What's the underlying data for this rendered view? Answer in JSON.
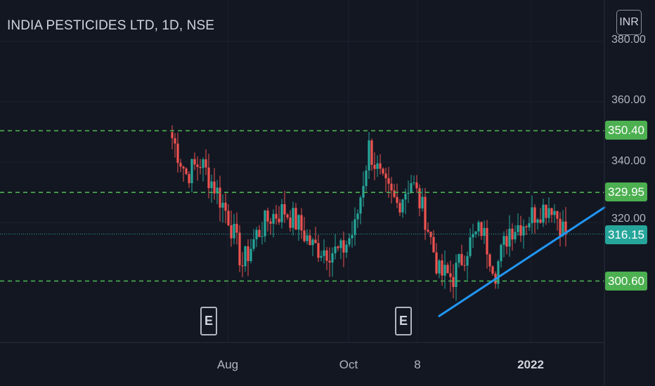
{
  "header": {
    "title": "INDIA PESTICIDES LTD, 1D, NSE",
    "currency": "INR"
  },
  "y_axis": {
    "ticks": [
      "380.00",
      "360.00",
      "340.00",
      "320.00"
    ]
  },
  "x_axis": {
    "ticks": [
      {
        "label": "Aug",
        "bold": false
      },
      {
        "label": "Oct",
        "bold": false
      },
      {
        "label": "8",
        "bold": false
      },
      {
        "label": "2022",
        "bold": true
      }
    ]
  },
  "price_levels": [
    {
      "value": 350.4,
      "label": "350.40",
      "color": "#4caf50"
    },
    {
      "value": 329.95,
      "label": "329.95",
      "color": "#4caf50"
    },
    {
      "value": 300.6,
      "label": "300.60",
      "color": "#4caf50"
    }
  ],
  "last_price": {
    "value": 316.15,
    "label": "316.15",
    "color": "#26a69a"
  },
  "earnings_markers": [
    {
      "label": "E"
    },
    {
      "label": "E"
    }
  ],
  "colors": {
    "up": "#26a69a",
    "down": "#ef5350",
    "level_line": "#4caf50",
    "trend_line": "#2196f3",
    "grid": "#1e222d"
  },
  "chart_data": {
    "type": "candlestick",
    "title": "INDIA PESTICIDES LTD, 1D, NSE",
    "currency": "INR",
    "ylim": [
      270,
      380
    ],
    "y_ticks": [
      320,
      340,
      360,
      380
    ],
    "x_ticks": [
      "Aug",
      "Oct",
      "8",
      "2022"
    ],
    "support_resistance_levels": [
      350.4,
      329.95,
      300.6
    ],
    "last_price": 316.15,
    "trend_line": {
      "from": {
        "date": "2021-11-15",
        "value": 289
      },
      "to": {
        "date": "2022-01-18",
        "value": 317
      }
    },
    "earnings_events": [
      "2021-08-13",
      "2021-11-08"
    ],
    "ohlc_anchor_points": [
      {
        "date": "2021-07-05",
        "close": 348
      },
      {
        "date": "2021-07-12",
        "close": 336
      },
      {
        "date": "2021-07-19",
        "close": 340
      },
      {
        "date": "2021-07-26",
        "close": 332
      },
      {
        "date": "2021-08-02",
        "close": 322
      },
      {
        "date": "2021-08-09",
        "close": 306
      },
      {
        "date": "2021-08-16",
        "close": 316
      },
      {
        "date": "2021-08-23",
        "close": 322
      },
      {
        "date": "2021-08-30",
        "close": 324
      },
      {
        "date": "2021-09-06",
        "close": 319
      },
      {
        "date": "2021-09-13",
        "close": 312
      },
      {
        "date": "2021-09-20",
        "close": 311
      },
      {
        "date": "2021-09-27",
        "close": 310
      },
      {
        "date": "2021-10-04",
        "close": 318
      },
      {
        "date": "2021-10-11",
        "close": 345
      },
      {
        "date": "2021-10-18",
        "close": 332
      },
      {
        "date": "2021-10-25",
        "close": 326
      },
      {
        "date": "2021-11-01",
        "close": 334
      },
      {
        "date": "2021-11-08",
        "close": 322
      },
      {
        "date": "2021-11-15",
        "close": 303
      },
      {
        "date": "2021-11-22",
        "close": 302
      },
      {
        "date": "2021-11-29",
        "close": 312
      },
      {
        "date": "2021-12-06",
        "close": 318
      },
      {
        "date": "2021-12-13",
        "close": 304
      },
      {
        "date": "2021-12-20",
        "close": 318
      },
      {
        "date": "2021-12-27",
        "close": 320
      },
      {
        "date": "2022-01-03",
        "close": 324
      },
      {
        "date": "2022-01-10",
        "close": 326
      },
      {
        "date": "2022-01-17",
        "close": 316
      }
    ]
  }
}
